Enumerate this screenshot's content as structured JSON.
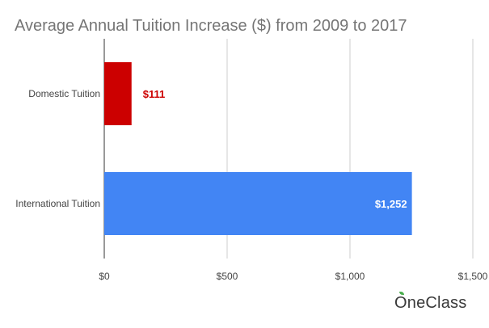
{
  "chart_data": {
    "type": "bar",
    "orientation": "horizontal",
    "title": "Average Annual Tuition Increase ($) from 2009 to 2017",
    "categories": [
      "Domestic Tuition",
      "International Tuition"
    ],
    "values": [
      111,
      1252
    ],
    "data_labels": [
      "$111",
      "$1,252"
    ],
    "bar_colors": [
      "#cc0000",
      "#4285f4"
    ],
    "label_colors": [
      "#cc0000",
      "#ffffff"
    ],
    "xlim": [
      0,
      1500
    ],
    "ticks": [
      0,
      500,
      1000,
      1500
    ],
    "tick_labels": [
      "$0",
      "$500",
      "$1,000",
      "$1,500"
    ],
    "grid": true,
    "legend": "none"
  },
  "brand": {
    "name": "OneClass",
    "leaf_color": "#4caf50"
  }
}
